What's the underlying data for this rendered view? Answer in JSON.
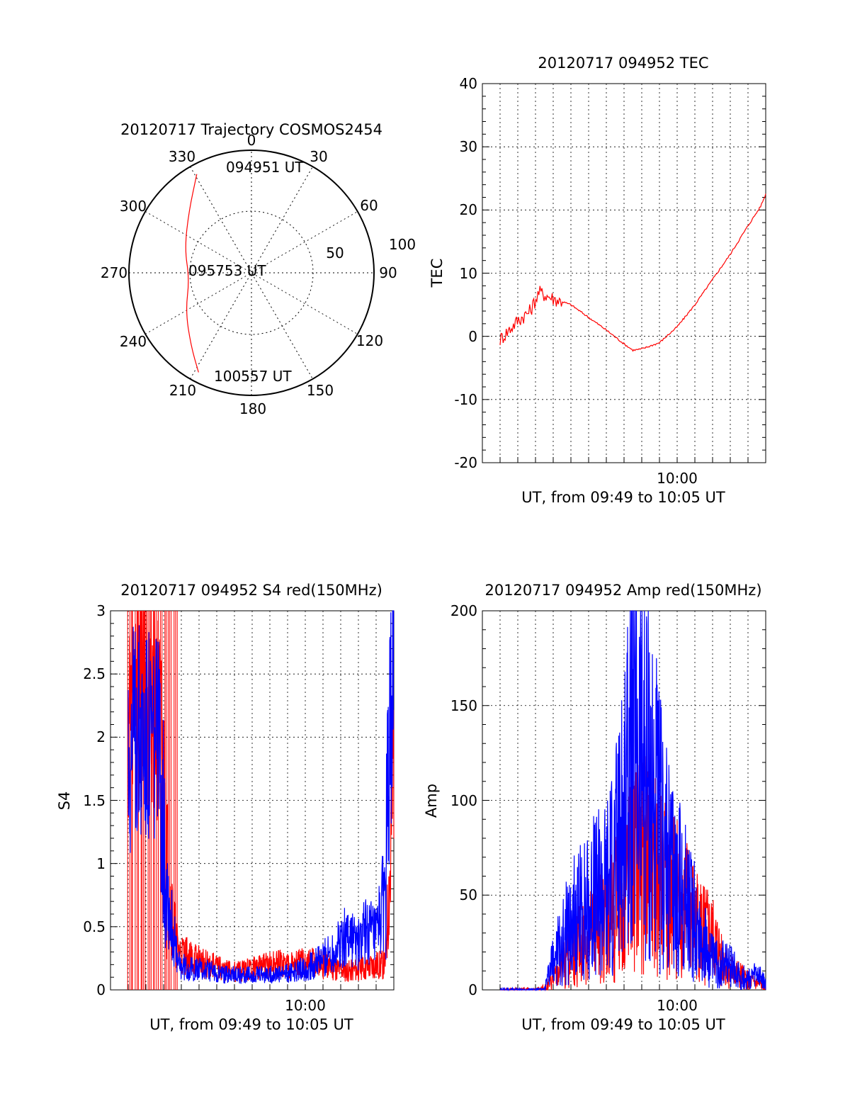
{
  "chart_data": [
    {
      "type": "polar",
      "title": "20120717 Trajectory COSMOS2454",
      "angle_labels": [
        "0",
        "30",
        "60",
        "90",
        "120",
        "150",
        "180",
        "210",
        "240",
        "270",
        "300",
        "330"
      ],
      "radius_labels": [
        "50",
        "100"
      ],
      "rlim": [
        0,
        100
      ],
      "trajectory": {
        "color": "#ff0000",
        "points": [
          {
            "az": 331,
            "r": 92
          },
          {
            "az": 315,
            "r": 72
          },
          {
            "az": 290,
            "r": 58
          },
          {
            "az": 264,
            "r": 51
          },
          {
            "az": 240,
            "r": 62
          },
          {
            "az": 220,
            "r": 77
          },
          {
            "az": 208,
            "r": 92
          }
        ]
      },
      "annotations": [
        "094951 UT",
        "095753 UT",
        "100557 UT"
      ]
    },
    {
      "type": "line",
      "title": "20120717 094952 TEC",
      "xlabel": "UT, from 09:49 to 10:05 UT",
      "ylabel": "TEC",
      "ylim": [
        -20,
        40
      ],
      "yticks": [
        "-20",
        "-10",
        "0",
        "10",
        "20",
        "30",
        "40"
      ],
      "xtick_label": "10:00",
      "x_unit": "minutes after 09:49 UT",
      "xlim": [
        0,
        16
      ],
      "series": [
        {
          "color": "#ff0000",
          "x": [
            1,
            1.5,
            2,
            2.7,
            3.2,
            4,
            5,
            6,
            7,
            8,
            8.5,
            9,
            10,
            11,
            12,
            13,
            14,
            15,
            15.7,
            16
          ],
          "y": [
            -0.5,
            1,
            2.5,
            4,
            7,
            6,
            5,
            3,
            1,
            -1.2,
            -2.2,
            -2,
            -1,
            1.5,
            5,
            9,
            13,
            17.5,
            20.5,
            22.5
          ]
        }
      ]
    },
    {
      "type": "line",
      "title": "20120717 094952 S4 red(150MHz)",
      "xlabel": "UT, from 09:49 to 10:05 UT",
      "ylabel": "S4",
      "ylim": [
        0,
        3
      ],
      "yticks": [
        "0",
        "0.5",
        "1",
        "1.5",
        "2",
        "2.5",
        "3"
      ],
      "xtick_label": "10:00",
      "x_unit": "minutes after 09:49 UT",
      "xlim": [
        0,
        16
      ],
      "series": [
        {
          "color": "#ff0000",
          "x": [
            1,
            1.5,
            2,
            2.5,
            2.8,
            3,
            3.3,
            3.8,
            4.5,
            5.5,
            6.5,
            7.5,
            8.5,
            9.5,
            10.5,
            11.5,
            12.5,
            13.5,
            14.5,
            15,
            15.5,
            15.8,
            16
          ],
          "y": [
            2.2,
            2.6,
            2.5,
            2.3,
            2.0,
            1.5,
            0.8,
            0.3,
            0.25,
            0.2,
            0.15,
            0.15,
            0.18,
            0.2,
            0.2,
            0.22,
            0.18,
            0.15,
            0.18,
            0.2,
            0.2,
            1.0,
            2.0
          ]
        },
        {
          "color": "#0000ff",
          "x": [
            1,
            1.5,
            2,
            2.5,
            2.8,
            3,
            3.3,
            3.8,
            4.5,
            5.5,
            6.5,
            7.5,
            8.5,
            9.5,
            10.5,
            11.5,
            12.5,
            13.5,
            14,
            14.5,
            15,
            15.5,
            15.8,
            16
          ],
          "y": [
            1.9,
            2.1,
            2.0,
            2.0,
            1.8,
            1.3,
            0.7,
            0.2,
            0.17,
            0.15,
            0.12,
            0.12,
            0.12,
            0.12,
            0.15,
            0.2,
            0.3,
            0.45,
            0.35,
            0.5,
            0.4,
            0.8,
            2.0,
            2.8
          ]
        }
      ]
    },
    {
      "type": "line",
      "title": "20120717 094952 Amp red(150MHz)",
      "xlabel": "UT, from 09:49 to 10:05 UT",
      "ylabel": "Amp",
      "ylim": [
        0,
        200
      ],
      "yticks": [
        "0",
        "50",
        "100",
        "150",
        "200"
      ],
      "xtick_label": "10:00",
      "x_unit": "minutes after 09:49 UT",
      "xlim": [
        0,
        16
      ],
      "series": [
        {
          "color": "#ff0000",
          "x": [
            1,
            2,
            3,
            3.5,
            4,
            5,
            6,
            7,
            8,
            8.5,
            9,
            9.5,
            10,
            10.5,
            11,
            12,
            12.5,
            13,
            14,
            15,
            15.5,
            16
          ],
          "y": [
            0,
            0,
            0,
            1,
            5,
            18,
            28,
            35,
            50,
            60,
            70,
            70,
            60,
            55,
            50,
            35,
            30,
            25,
            10,
            5,
            3,
            2
          ]
        },
        {
          "color": "#0000ff",
          "x": [
            1,
            2,
            3,
            3.5,
            4,
            5,
            6,
            7,
            8,
            8.5,
            9,
            9.5,
            10,
            10.5,
            11,
            12,
            12.5,
            13,
            14,
            15,
            15.5,
            16
          ],
          "y": [
            0,
            0,
            0,
            0,
            15,
            35,
            45,
            55,
            85,
            125,
            130,
            110,
            85,
            65,
            55,
            35,
            25,
            15,
            12,
            5,
            8,
            3
          ]
        }
      ]
    }
  ]
}
